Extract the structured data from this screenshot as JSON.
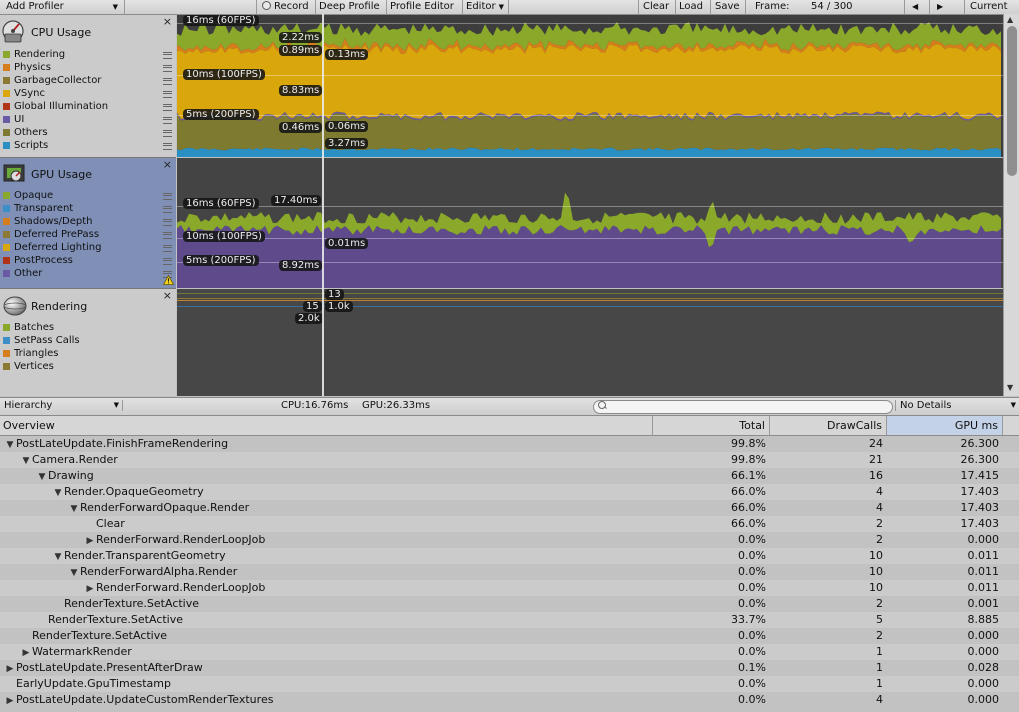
{
  "toolbar": {
    "add_profiler": "Add Profiler",
    "record": "Record",
    "deep_profile": "Deep Profile",
    "profile_editor": "Profile Editor",
    "editor": "Editor",
    "clear": "Clear",
    "load": "Load",
    "save": "Save",
    "frame_label": "Frame:",
    "frame_value": "54 / 300",
    "prev_icon": "◀",
    "next_icon": "▶",
    "current": "Current"
  },
  "cpu": {
    "title": "CPU Usage",
    "legend": [
      {
        "label": "Rendering",
        "color": "#8aa92a"
      },
      {
        "label": "Physics",
        "color": "#d57e1b"
      },
      {
        "label": "GarbageCollector",
        "color": "#8c7a34"
      },
      {
        "label": "VSync",
        "color": "#d9a60c"
      },
      {
        "label": "Global Illumination",
        "color": "#b03317"
      },
      {
        "label": "UI",
        "color": "#6a5aa6"
      },
      {
        "label": "Others",
        "color": "#7e7a30"
      },
      {
        "label": "Scripts",
        "color": "#2a8fc2"
      }
    ],
    "fps_labels": [
      "16ms (60FPS)",
      "10ms (100FPS)",
      "5ms (200FPS)"
    ],
    "values": [
      "2.22ms",
      "0.89ms",
      "0.13ms",
      "8.83ms",
      "0.46ms",
      "0.06ms",
      "3.27ms"
    ]
  },
  "gpu": {
    "title": "GPU Usage",
    "legend": [
      {
        "label": "Opaque",
        "color": "#8aa92a"
      },
      {
        "label": "Transparent",
        "color": "#3b8fc6"
      },
      {
        "label": "Shadows/Depth",
        "color": "#d57e1b"
      },
      {
        "label": "Deferred PrePass",
        "color": "#8c7a34"
      },
      {
        "label": "Deferred Lighting",
        "color": "#d9a60c"
      },
      {
        "label": "PostProcess",
        "color": "#b03317"
      },
      {
        "label": "Other",
        "color": "#6a5aa6"
      }
    ],
    "fps_labels": [
      "16ms (60FPS)",
      "10ms (100FPS)",
      "5ms (200FPS)"
    ],
    "values": [
      "17.40ms",
      "0.01ms",
      "8.92ms"
    ]
  },
  "rendering": {
    "title": "Rendering",
    "legend": [
      {
        "label": "Batches",
        "color": "#8aa92a"
      },
      {
        "label": "SetPass Calls",
        "color": "#3b8fc6"
      },
      {
        "label": "Triangles",
        "color": "#d57e1b"
      },
      {
        "label": "Vertices",
        "color": "#8c7a34"
      }
    ],
    "values": [
      "13",
      "15",
      "1.0k",
      "2.0k"
    ]
  },
  "detail": {
    "view_mode": "Hierarchy",
    "cpu_time": "CPU:16.76ms",
    "gpu_time": "GPU:26.33ms",
    "search_placeholder": "",
    "details_mode": "No Details"
  },
  "table": {
    "headers": {
      "overview": "Overview",
      "total": "Total",
      "drawcalls": "DrawCalls",
      "gpu_ms": "GPU ms"
    },
    "rows": [
      {
        "depth": 0,
        "toggle": "open",
        "name": "PostLateUpdate.FinishFrameRendering",
        "total": "99.8%",
        "drawcalls": "24",
        "gpu": "26.300"
      },
      {
        "depth": 1,
        "toggle": "open",
        "name": "Camera.Render",
        "total": "99.8%",
        "drawcalls": "21",
        "gpu": "26.300"
      },
      {
        "depth": 2,
        "toggle": "open",
        "name": "Drawing",
        "total": "66.1%",
        "drawcalls": "16",
        "gpu": "17.415"
      },
      {
        "depth": 3,
        "toggle": "open",
        "name": "Render.OpaqueGeometry",
        "total": "66.0%",
        "drawcalls": "4",
        "gpu": "17.403"
      },
      {
        "depth": 4,
        "toggle": "open",
        "name": "RenderForwardOpaque.Render",
        "total": "66.0%",
        "drawcalls": "4",
        "gpu": "17.403"
      },
      {
        "depth": 5,
        "toggle": "none",
        "name": "Clear",
        "total": "66.0%",
        "drawcalls": "2",
        "gpu": "17.403"
      },
      {
        "depth": 5,
        "toggle": "closed",
        "name": "RenderForward.RenderLoopJob",
        "total": "0.0%",
        "drawcalls": "2",
        "gpu": "0.000"
      },
      {
        "depth": 3,
        "toggle": "open",
        "name": "Render.TransparentGeometry",
        "total": "0.0%",
        "drawcalls": "10",
        "gpu": "0.011"
      },
      {
        "depth": 4,
        "toggle": "open",
        "name": "RenderForwardAlpha.Render",
        "total": "0.0%",
        "drawcalls": "10",
        "gpu": "0.011"
      },
      {
        "depth": 5,
        "toggle": "closed",
        "name": "RenderForward.RenderLoopJob",
        "total": "0.0%",
        "drawcalls": "10",
        "gpu": "0.011"
      },
      {
        "depth": 3,
        "toggle": "none",
        "name": "RenderTexture.SetActive",
        "total": "0.0%",
        "drawcalls": "2",
        "gpu": "0.001"
      },
      {
        "depth": 2,
        "toggle": "none",
        "name": "RenderTexture.SetActive",
        "total": "33.7%",
        "drawcalls": "5",
        "gpu": "8.885"
      },
      {
        "depth": 1,
        "toggle": "none",
        "name": "RenderTexture.SetActive",
        "total": "0.0%",
        "drawcalls": "2",
        "gpu": "0.000"
      },
      {
        "depth": 1,
        "toggle": "closed",
        "name": "WatermarkRender",
        "total": "0.0%",
        "drawcalls": "1",
        "gpu": "0.000"
      },
      {
        "depth": 0,
        "toggle": "closed",
        "name": "PostLateUpdate.PresentAfterDraw",
        "total": "0.1%",
        "drawcalls": "1",
        "gpu": "0.028"
      },
      {
        "depth": 0,
        "toggle": "none",
        "name": "EarlyUpdate.GpuTimestamp",
        "total": "0.0%",
        "drawcalls": "1",
        "gpu": "0.000"
      },
      {
        "depth": 0,
        "toggle": "closed",
        "name": "PostLateUpdate.UpdateCustomRenderTextures",
        "total": "0.0%",
        "drawcalls": "4",
        "gpu": "0.000"
      }
    ]
  },
  "icons": {
    "close": "×",
    "warning": "warning-icon",
    "dropdown": "▼",
    "scroll_up": "▲",
    "scroll_down": "▼"
  }
}
